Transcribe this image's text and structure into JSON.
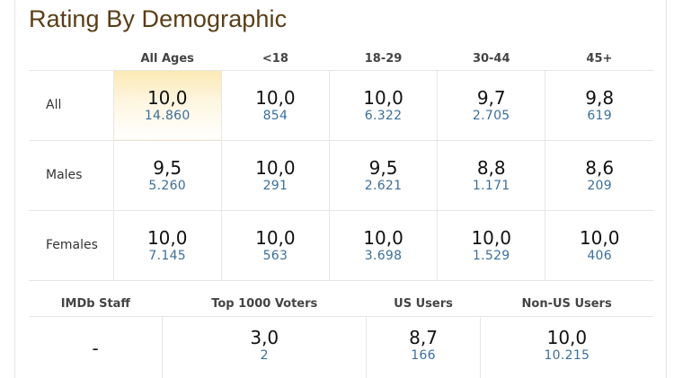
{
  "title": "Rating By Demographic",
  "columns": [
    "All Ages",
    "<18",
    "18-29",
    "30-44",
    "45+"
  ],
  "rows": [
    {
      "label": "All",
      "cells": [
        {
          "rating": "10,0",
          "votes": "14.860"
        },
        {
          "rating": "10,0",
          "votes": "854"
        },
        {
          "rating": "10,0",
          "votes": "6.322"
        },
        {
          "rating": "9,7",
          "votes": "2.705"
        },
        {
          "rating": "9,8",
          "votes": "619"
        }
      ]
    },
    {
      "label": "Males",
      "cells": [
        {
          "rating": "9,5",
          "votes": "5.260"
        },
        {
          "rating": "10,0",
          "votes": "291"
        },
        {
          "rating": "9,5",
          "votes": "2.621"
        },
        {
          "rating": "8,8",
          "votes": "1.171"
        },
        {
          "rating": "8,6",
          "votes": "209"
        }
      ]
    },
    {
      "label": "Females",
      "cells": [
        {
          "rating": "10,0",
          "votes": "7.145"
        },
        {
          "rating": "10,0",
          "votes": "563"
        },
        {
          "rating": "10,0",
          "votes": "3.698"
        },
        {
          "rating": "10,0",
          "votes": "1.529"
        },
        {
          "rating": "10,0",
          "votes": "406"
        }
      ]
    }
  ],
  "other": {
    "headers": [
      "IMDb Staff",
      "Top 1000 Voters",
      "US Users",
      "Non-US Users"
    ],
    "staff": "-",
    "cells": [
      {
        "rating": "3,0",
        "votes": "2"
      },
      {
        "rating": "8,7",
        "votes": "166"
      },
      {
        "rating": "10,0",
        "votes": "10.215"
      }
    ]
  },
  "colors": {
    "title": "#5a3e16",
    "votes_link": "#3b6e9a",
    "highlight": "#fbe9b4"
  }
}
